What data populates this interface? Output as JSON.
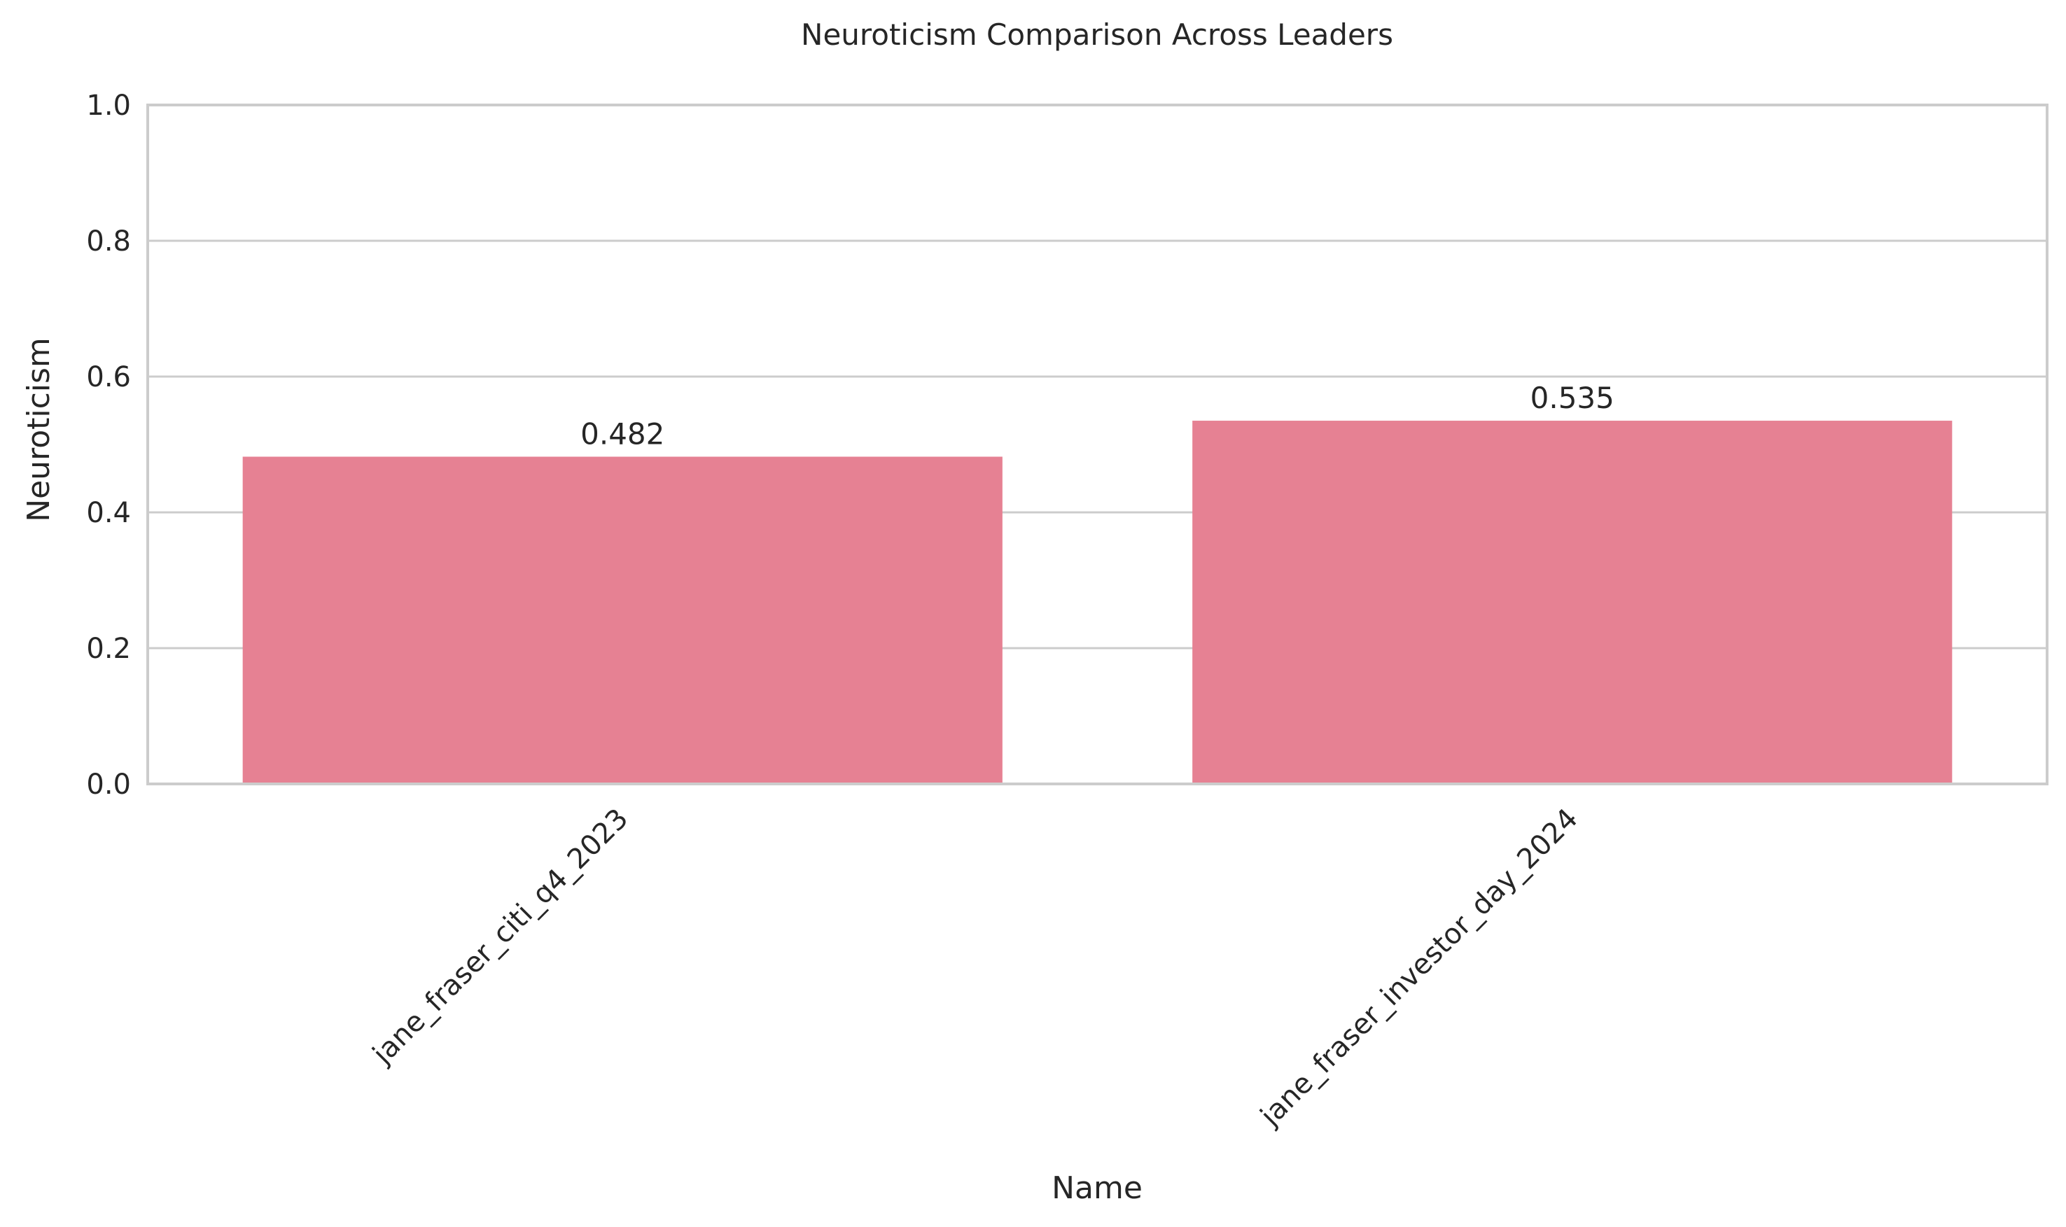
{
  "chart_data": {
    "type": "bar",
    "title": "Neuroticism Comparison Across Leaders",
    "xlabel": "Name",
    "ylabel": "Neuroticism",
    "categories": [
      "jane_fraser_citi_q4_2023",
      "jane_fraser_investor_day_2024"
    ],
    "values": [
      0.482,
      0.535
    ],
    "value_labels": [
      "0.482",
      "0.535"
    ],
    "ylim": [
      0,
      1.0
    ],
    "yticks": [
      0.0,
      0.2,
      0.4,
      0.6,
      0.8,
      1.0
    ],
    "ytick_labels": [
      "0.0",
      "0.2",
      "0.4",
      "0.6",
      "0.8",
      "1.0"
    ],
    "grid": "horizontal",
    "bar_color": "#e68193",
    "grid_color": "#cccccc",
    "spine_color": "#cccccc"
  }
}
